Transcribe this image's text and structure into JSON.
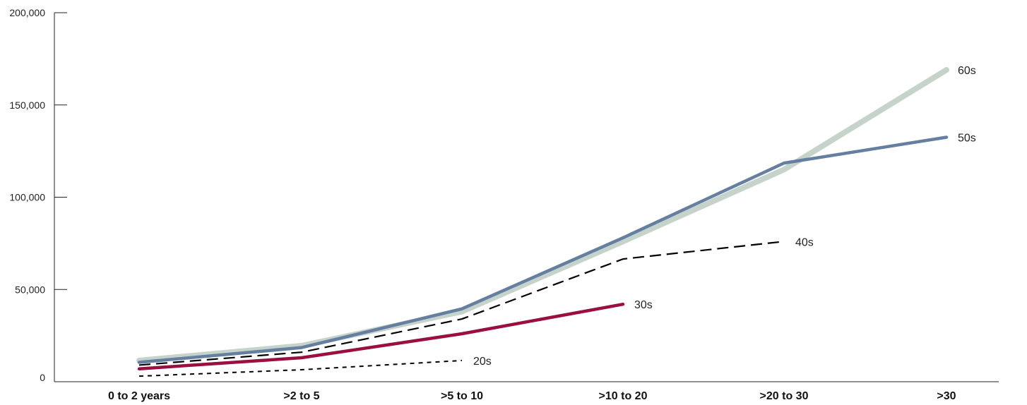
{
  "chart_data": {
    "type": "line",
    "title": "",
    "xlabel": "",
    "ylabel": "",
    "categories": [
      "0 to 2 years",
      ">2 to 5",
      ">5 to 10",
      ">10 to 20",
      ">20 to 30",
      ">30"
    ],
    "yticks": [
      "0",
      "50,000",
      "100,000",
      "150,000",
      "200,000"
    ],
    "ylim": [
      0,
      200000
    ],
    "grid": false,
    "legend": "inline labels at line ends",
    "series": [
      {
        "name": "60s",
        "color": "#c5d3ca",
        "style": "solid-thick",
        "values": [
          11500,
          19500,
          38000,
          76000,
          115000,
          169000
        ]
      },
      {
        "name": "50s",
        "color": "#647fa0",
        "style": "solid",
        "values": [
          10500,
          18500,
          39500,
          78000,
          118500,
          132500
        ]
      },
      {
        "name": "40s",
        "color": "#000000",
        "style": "long-dash",
        "values": [
          9000,
          16000,
          34000,
          66500,
          76000,
          null
        ]
      },
      {
        "name": "30s",
        "color": "#9a0f3f",
        "style": "solid",
        "values": [
          7000,
          13000,
          26000,
          42000,
          null,
          null
        ]
      },
      {
        "name": "20s",
        "color": "#000000",
        "style": "short-dash",
        "values": [
          3000,
          6500,
          11500,
          null,
          null,
          null
        ]
      }
    ]
  }
}
